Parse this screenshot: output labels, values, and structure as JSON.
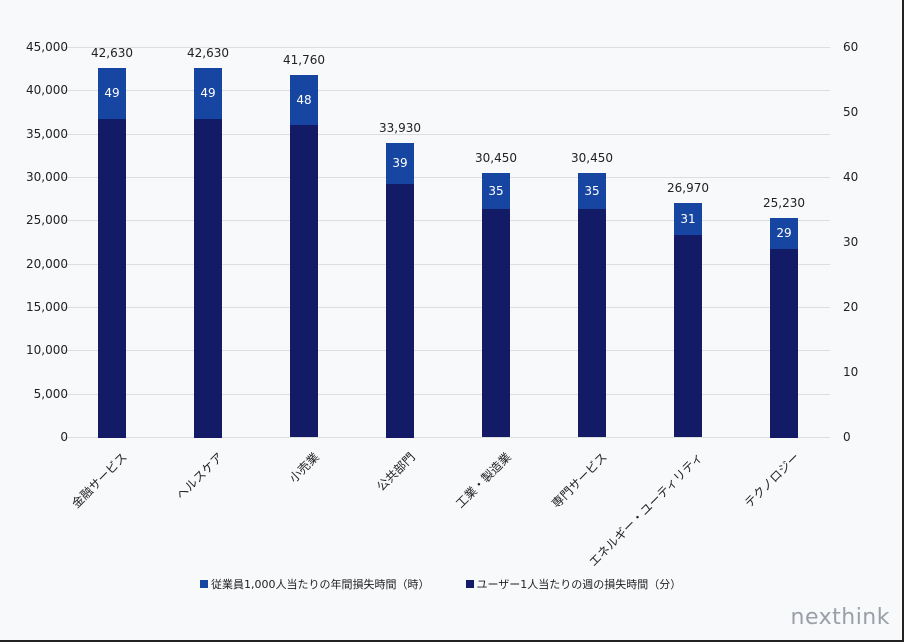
{
  "chart_data": {
    "type": "bar",
    "title": "",
    "categories": [
      "金融サービス",
      "ヘルスケア",
      "小売業",
      "公共部門",
      "工業・製造業",
      "専門サービス",
      "エネルギー・ユーティリティ",
      "テクノロジー"
    ],
    "series": [
      {
        "name": "従業員1,000人当たりの年間損失時間（時）",
        "axis": "left",
        "color": "#1746a2",
        "values": [
          42630,
          42630,
          41760,
          33930,
          30450,
          30450,
          26970,
          25230
        ]
      },
      {
        "name": "ユーザー1人当たりの週の損失時間（分）",
        "axis": "right",
        "color": "#131b66",
        "values": [
          49,
          49,
          48,
          39,
          35,
          35,
          31,
          29
        ]
      }
    ],
    "total_labels": [
      "42,630",
      "42,630",
      "41,760",
      "33,930",
      "30,450",
      "30,450",
      "26,970",
      "25,230"
    ],
    "segment_labels": [
      "49",
      "49",
      "48",
      "39",
      "35",
      "35",
      "31",
      "29"
    ],
    "left_axis": {
      "ylim": [
        0,
        45000
      ],
      "ticks": [
        "0",
        "5,000",
        "10,000",
        "15,000",
        "20,000",
        "25,000",
        "30,000",
        "35,000",
        "40,000",
        "45,000"
      ]
    },
    "right_axis": {
      "ylim": [
        0,
        60
      ],
      "ticks": [
        "0",
        "10",
        "20",
        "30",
        "40",
        "50",
        "60"
      ]
    },
    "xlabel": "",
    "ylabel": "",
    "grid": true,
    "legend_position": "bottom"
  },
  "legend": {
    "items": [
      {
        "label": "従業員1,000人当たりの年間損失時間（時）",
        "color": "#1746a2"
      },
      {
        "label": "ユーザー1人当たりの週の損失時間（分）",
        "color": "#131b66"
      }
    ]
  },
  "logo": {
    "text": "nexthink"
  }
}
